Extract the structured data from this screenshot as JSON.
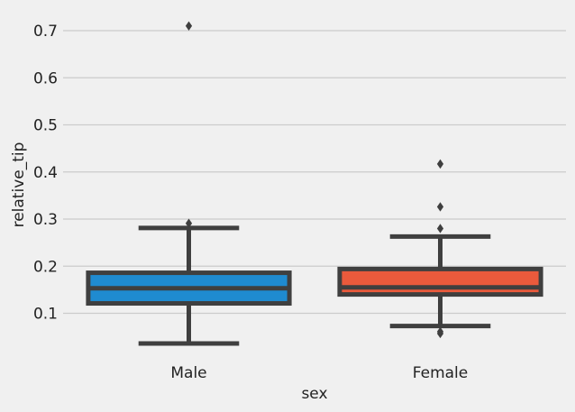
{
  "chart_data": {
    "type": "box",
    "xlabel": "sex",
    "ylabel": "relative_tip",
    "categories": [
      "Male",
      "Female"
    ],
    "yticks": [
      0.1,
      0.2,
      0.3,
      0.4,
      0.5,
      0.6,
      0.7
    ],
    "ylim": [
      0.0,
      0.73
    ],
    "grid": "horizontal",
    "boxes": [
      {
        "category": "Male",
        "color": "#1f8bd0",
        "whisker_low": 0.036,
        "q1": 0.121,
        "median": 0.153,
        "q3": 0.186,
        "whisker_high": 0.281,
        "outliers": [
          0.291,
          0.71
        ]
      },
      {
        "category": "Female",
        "color": "#ea5a3c",
        "whisker_low": 0.073,
        "q1": 0.14,
        "median": 0.155,
        "q3": 0.194,
        "whisker_high": 0.263,
        "outliers": [
          0.057,
          0.061,
          0.28,
          0.326,
          0.417
        ]
      }
    ]
  }
}
